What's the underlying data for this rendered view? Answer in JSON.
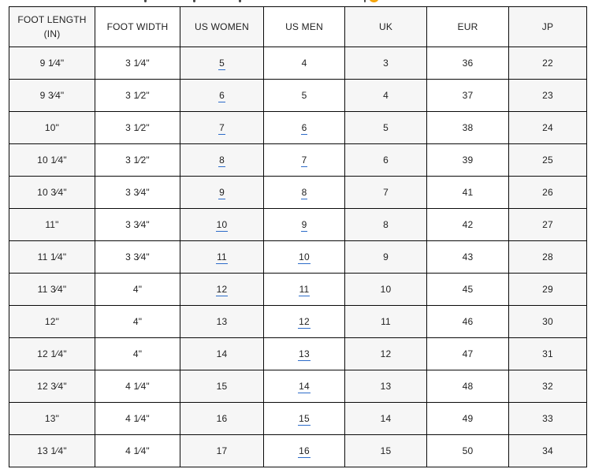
{
  "top_strip": {
    "description_icon": "partial-emoji-icon",
    "emoji_color": "#f59f00"
  },
  "colors": {
    "stripe": "#f6f6f6",
    "border": "#0a0a0a",
    "text": "#222222",
    "link_underline": "#2d6cc9",
    "emoji": "#f59f00"
  },
  "table": {
    "headers": [
      "FOOT LENGTH (IN)",
      "FOOT WIDTH",
      "US WOMEN",
      "US MEN",
      "UK",
      "EUR",
      "JP"
    ],
    "rows": [
      [
        {
          "text": "9 1⁄4\""
        },
        {
          "text": "3 1⁄4\""
        },
        {
          "text": "5",
          "link": true
        },
        {
          "text": "4"
        },
        {
          "text": "3"
        },
        {
          "text": "36"
        },
        {
          "text": "22"
        }
      ],
      [
        {
          "text": "9 3⁄4\""
        },
        {
          "text": "3 1⁄2\""
        },
        {
          "text": "6",
          "link": true
        },
        {
          "text": "5"
        },
        {
          "text": "4"
        },
        {
          "text": "37"
        },
        {
          "text": "23"
        }
      ],
      [
        {
          "text": "10\""
        },
        {
          "text": "3 1⁄2\""
        },
        {
          "text": "7",
          "link": true
        },
        {
          "text": "6",
          "link": true
        },
        {
          "text": "5"
        },
        {
          "text": "38"
        },
        {
          "text": "24"
        }
      ],
      [
        {
          "text": "10 1⁄4\""
        },
        {
          "text": "3 1⁄2\""
        },
        {
          "text": "8",
          "link": true
        },
        {
          "text": "7",
          "link": true
        },
        {
          "text": "6"
        },
        {
          "text": "39"
        },
        {
          "text": "25"
        }
      ],
      [
        {
          "text": "10 3⁄4\""
        },
        {
          "text": "3 3⁄4\""
        },
        {
          "text": "9",
          "link": true
        },
        {
          "text": "8",
          "link": true
        },
        {
          "text": "7"
        },
        {
          "text": "41"
        },
        {
          "text": "26"
        }
      ],
      [
        {
          "text": "11\""
        },
        {
          "text": "3 3⁄4\""
        },
        {
          "text": "10",
          "link": true
        },
        {
          "text": "9",
          "link": true
        },
        {
          "text": "8"
        },
        {
          "text": "42"
        },
        {
          "text": "27"
        }
      ],
      [
        {
          "text": "11 1⁄4\""
        },
        {
          "text": "3 3⁄4\""
        },
        {
          "text": "11",
          "link": true
        },
        {
          "text": "10",
          "link": true
        },
        {
          "text": "9"
        },
        {
          "text": "43"
        },
        {
          "text": "28"
        }
      ],
      [
        {
          "text": "11 3⁄4\""
        },
        {
          "text": "4\""
        },
        {
          "text": "12",
          "link": true
        },
        {
          "text": "11",
          "link": true
        },
        {
          "text": "10"
        },
        {
          "text": "45"
        },
        {
          "text": "29"
        }
      ],
      [
        {
          "text": "12\""
        },
        {
          "text": "4\""
        },
        {
          "text": "13"
        },
        {
          "text": "12",
          "link": true
        },
        {
          "text": "11"
        },
        {
          "text": "46"
        },
        {
          "text": "30"
        }
      ],
      [
        {
          "text": "12 1⁄4\""
        },
        {
          "text": "4\""
        },
        {
          "text": "14"
        },
        {
          "text": "13",
          "link": true
        },
        {
          "text": "12"
        },
        {
          "text": "47"
        },
        {
          "text": "31"
        }
      ],
      [
        {
          "text": "12 3⁄4\""
        },
        {
          "text": "4 1⁄4\""
        },
        {
          "text": "15"
        },
        {
          "text": "14",
          "link": true
        },
        {
          "text": "13"
        },
        {
          "text": "48"
        },
        {
          "text": "32"
        }
      ],
      [
        {
          "text": "13\""
        },
        {
          "text": "4 1⁄4\""
        },
        {
          "text": "16"
        },
        {
          "text": "15",
          "link": true
        },
        {
          "text": "14"
        },
        {
          "text": "49"
        },
        {
          "text": "33"
        }
      ],
      [
        {
          "text": "13 1⁄4\""
        },
        {
          "text": "4 1⁄4\""
        },
        {
          "text": "17"
        },
        {
          "text": "16",
          "link": true
        },
        {
          "text": "15"
        },
        {
          "text": "50"
        },
        {
          "text": "34"
        }
      ]
    ]
  }
}
